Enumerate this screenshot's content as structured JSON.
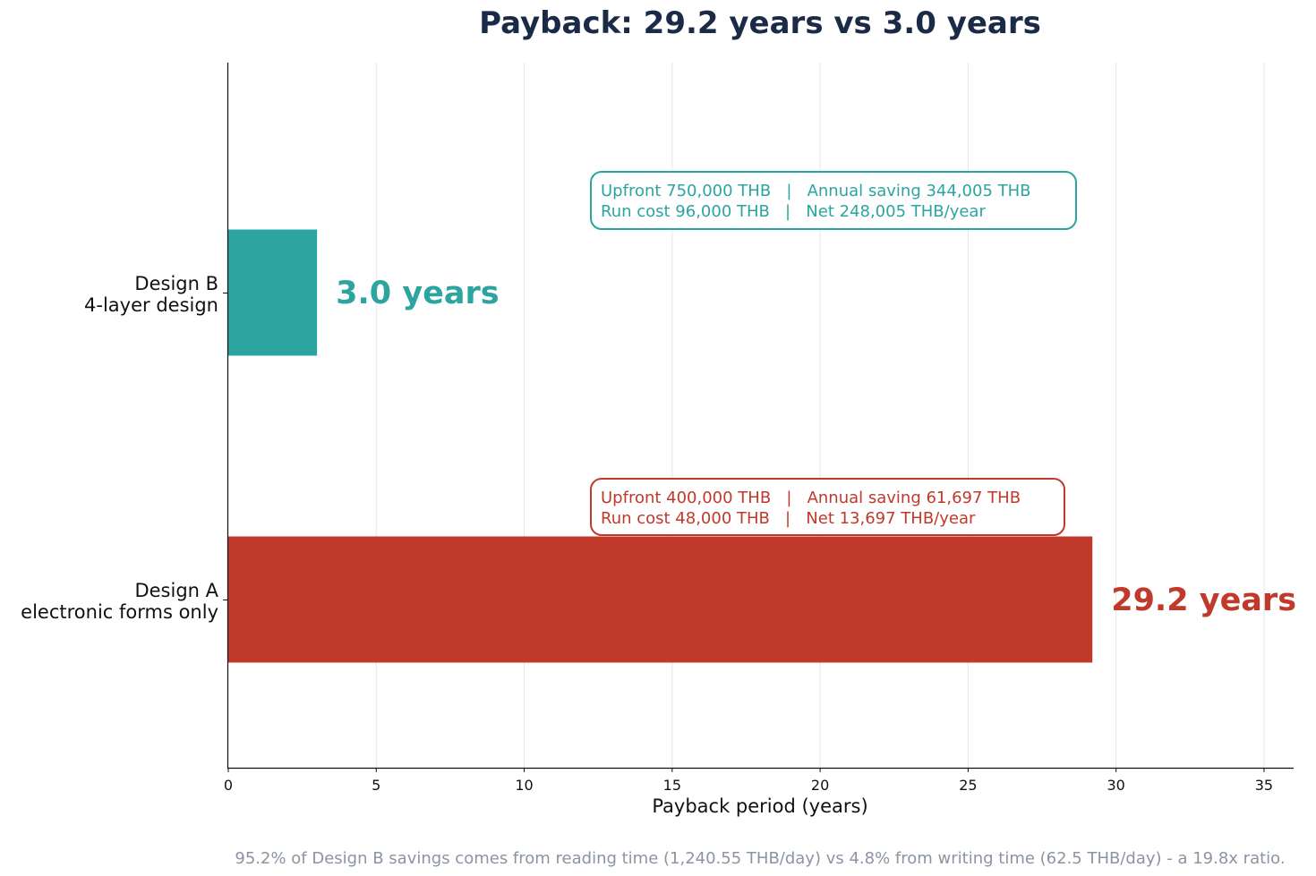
{
  "chart_data": {
    "type": "bar",
    "orientation": "horizontal",
    "title": "Payback: 29.2 years vs 3.0 years",
    "xlabel": "Payback period (years)",
    "ylabel": "",
    "xlim": [
      0,
      36
    ],
    "xticks": [
      0,
      5,
      10,
      15,
      20,
      25,
      30,
      35
    ],
    "grid": "x",
    "bars": [
      {
        "key": "design_a",
        "label_line1": "Design A",
        "label_line2": "electronic forms only",
        "value": 29.2,
        "value_label": "29.2 years",
        "color": "#c0392b",
        "annotation_line1": "Upfront 400,000 THB   |   Annual saving 61,697 THB",
        "annotation_line2": "Run cost 48,000 THB   |   Net 13,697 THB/year"
      },
      {
        "key": "design_b",
        "label_line1": "Design B",
        "label_line2": "4-layer design",
        "value": 3.0,
        "value_label": "3.0 years",
        "color": "#2ca4a0",
        "annotation_line1": "Upfront 750,000 THB   |   Annual saving 344,005 THB",
        "annotation_line2": "Run cost 96,000 THB   |   Net 248,005 THB/year"
      }
    ],
    "footnote": "95.2% of Design B savings comes from reading time (1,240.55 THB/day) vs 4.8% from writing time (62.5 THB/day) - a 19.8x ratio."
  }
}
